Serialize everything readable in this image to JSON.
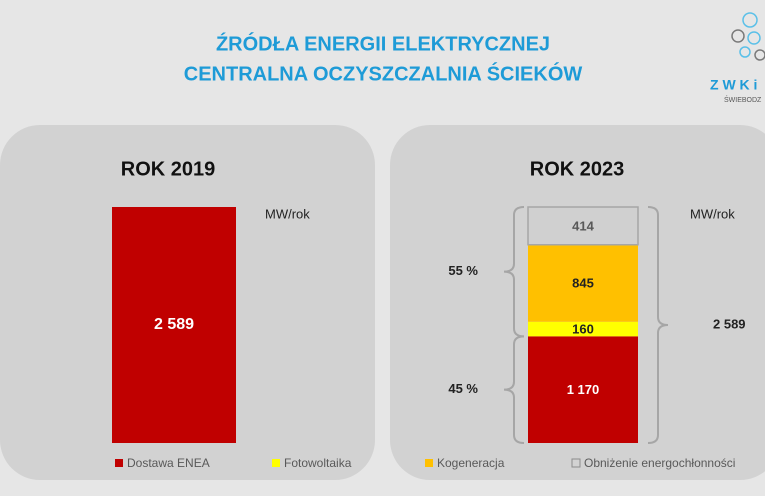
{
  "title_lines": [
    "ŹRÓDŁA ENERGII ELEKTRYCZNEJ",
    "CENTRALNA OCZYSZCZALNIA ŚCIEKÓW"
  ],
  "logo": {
    "text": "Z W K i",
    "subtext": "ŚWIEBODZ"
  },
  "chart_data": [
    {
      "type": "bar",
      "title": "ROK 2019",
      "unit": "MW/rok",
      "values": [
        2589
      ],
      "value_labels": [
        "2 589"
      ],
      "color": "#c00000"
    },
    {
      "type": "stacked_bar",
      "title": "ROK 2023",
      "unit": "MW/rok",
      "series": [
        {
          "name": "Dostawa ENEA",
          "color": "#c00000",
          "values": [
            1170
          ],
          "value_labels": [
            "1 170"
          ]
        },
        {
          "name": "Fotowoltaika",
          "color": "#ffff00",
          "values": [
            160
          ]
        },
        {
          "name": "Kogeneracja",
          "color": "#ffc000",
          "values": [
            845
          ]
        },
        {
          "name": "Obniżenie energochłonności",
          "color": "#d0d0d0",
          "values": [
            414
          ]
        }
      ],
      "shares": [
        {
          "value": 45,
          "label": "45 %"
        },
        {
          "value": 55,
          "label": "55 %"
        }
      ],
      "total": 2589,
      "total_label": "2 589"
    }
  ]
}
